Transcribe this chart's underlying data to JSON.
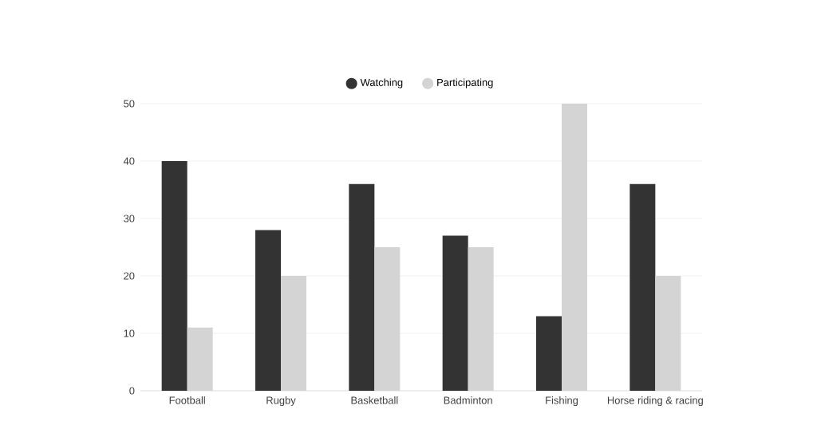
{
  "chart_data": {
    "type": "bar",
    "categories": [
      "Football",
      "Rugby",
      "Basketball",
      "Badminton",
      "Fishing",
      "Horse riding & racing"
    ],
    "series": [
      {
        "name": "Watching",
        "color": "#333333",
        "values": [
          40,
          28,
          36,
          27,
          13,
          36
        ]
      },
      {
        "name": "Participating",
        "color": "#d4d4d4",
        "values": [
          11,
          20,
          25,
          25,
          50,
          20
        ]
      }
    ],
    "ylim": [
      0,
      50
    ],
    "yticks": [
      0,
      10,
      20,
      30,
      40,
      50
    ],
    "grid": "y",
    "legend": "top",
    "marker": "circle"
  }
}
